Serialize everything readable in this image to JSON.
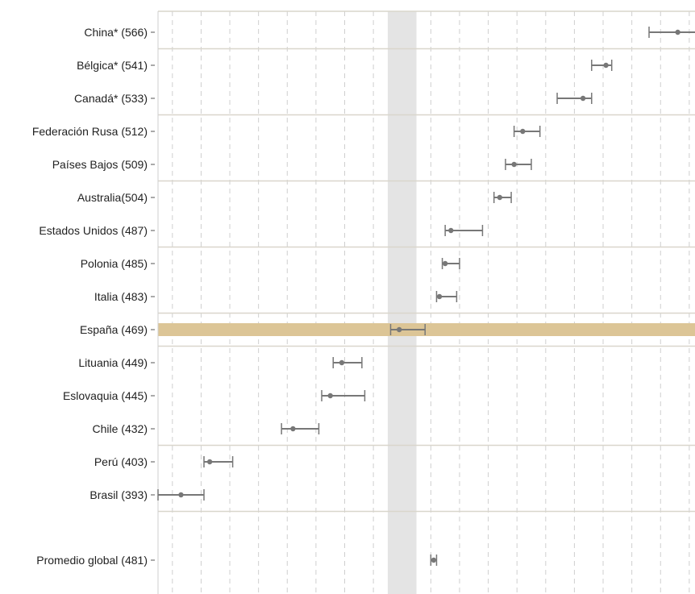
{
  "chart_data": {
    "type": "scatter",
    "orientation": "horizontal",
    "error_bars": true,
    "title": "",
    "xlabel": "",
    "ylabel": "",
    "xlim": [
      385,
      572
    ],
    "grid": "vertical-dashed",
    "reference_band": {
      "from": 465,
      "to": 475
    },
    "highlight_category": "España (469)",
    "colors": {
      "point": "#777777",
      "highlight": "#dcc596",
      "band": "#e4e4e4",
      "grid": "#cfcfcf",
      "separator": "#d9d6cc"
    },
    "categories": [
      "China* (566)",
      "Bélgica* (541)",
      "Canadá* (533)",
      "Federación Rusa (512)",
      "Países Bajos (509)",
      "Australia(504)",
      "Estados Unidos (487)",
      "Polonia (485)",
      "Italia (483)",
      "España (469)",
      "Lituania (449)",
      "Eslovaquia (445)",
      "Chile (432)",
      "Perú (403)",
      "Brasil (393)",
      "Promedio global (481)"
    ],
    "values": [
      566,
      541,
      533,
      512,
      509,
      504,
      487,
      485,
      483,
      469,
      449,
      445,
      432,
      403,
      393,
      481
    ],
    "err_low": [
      556,
      536,
      524,
      509,
      506,
      502,
      485,
      484,
      482,
      466,
      446,
      442,
      428,
      401,
      385,
      480
    ],
    "err_high": [
      577,
      543,
      536,
      518,
      515,
      508,
      498,
      490,
      489,
      478,
      456,
      457,
      441,
      411,
      401,
      482
    ]
  }
}
